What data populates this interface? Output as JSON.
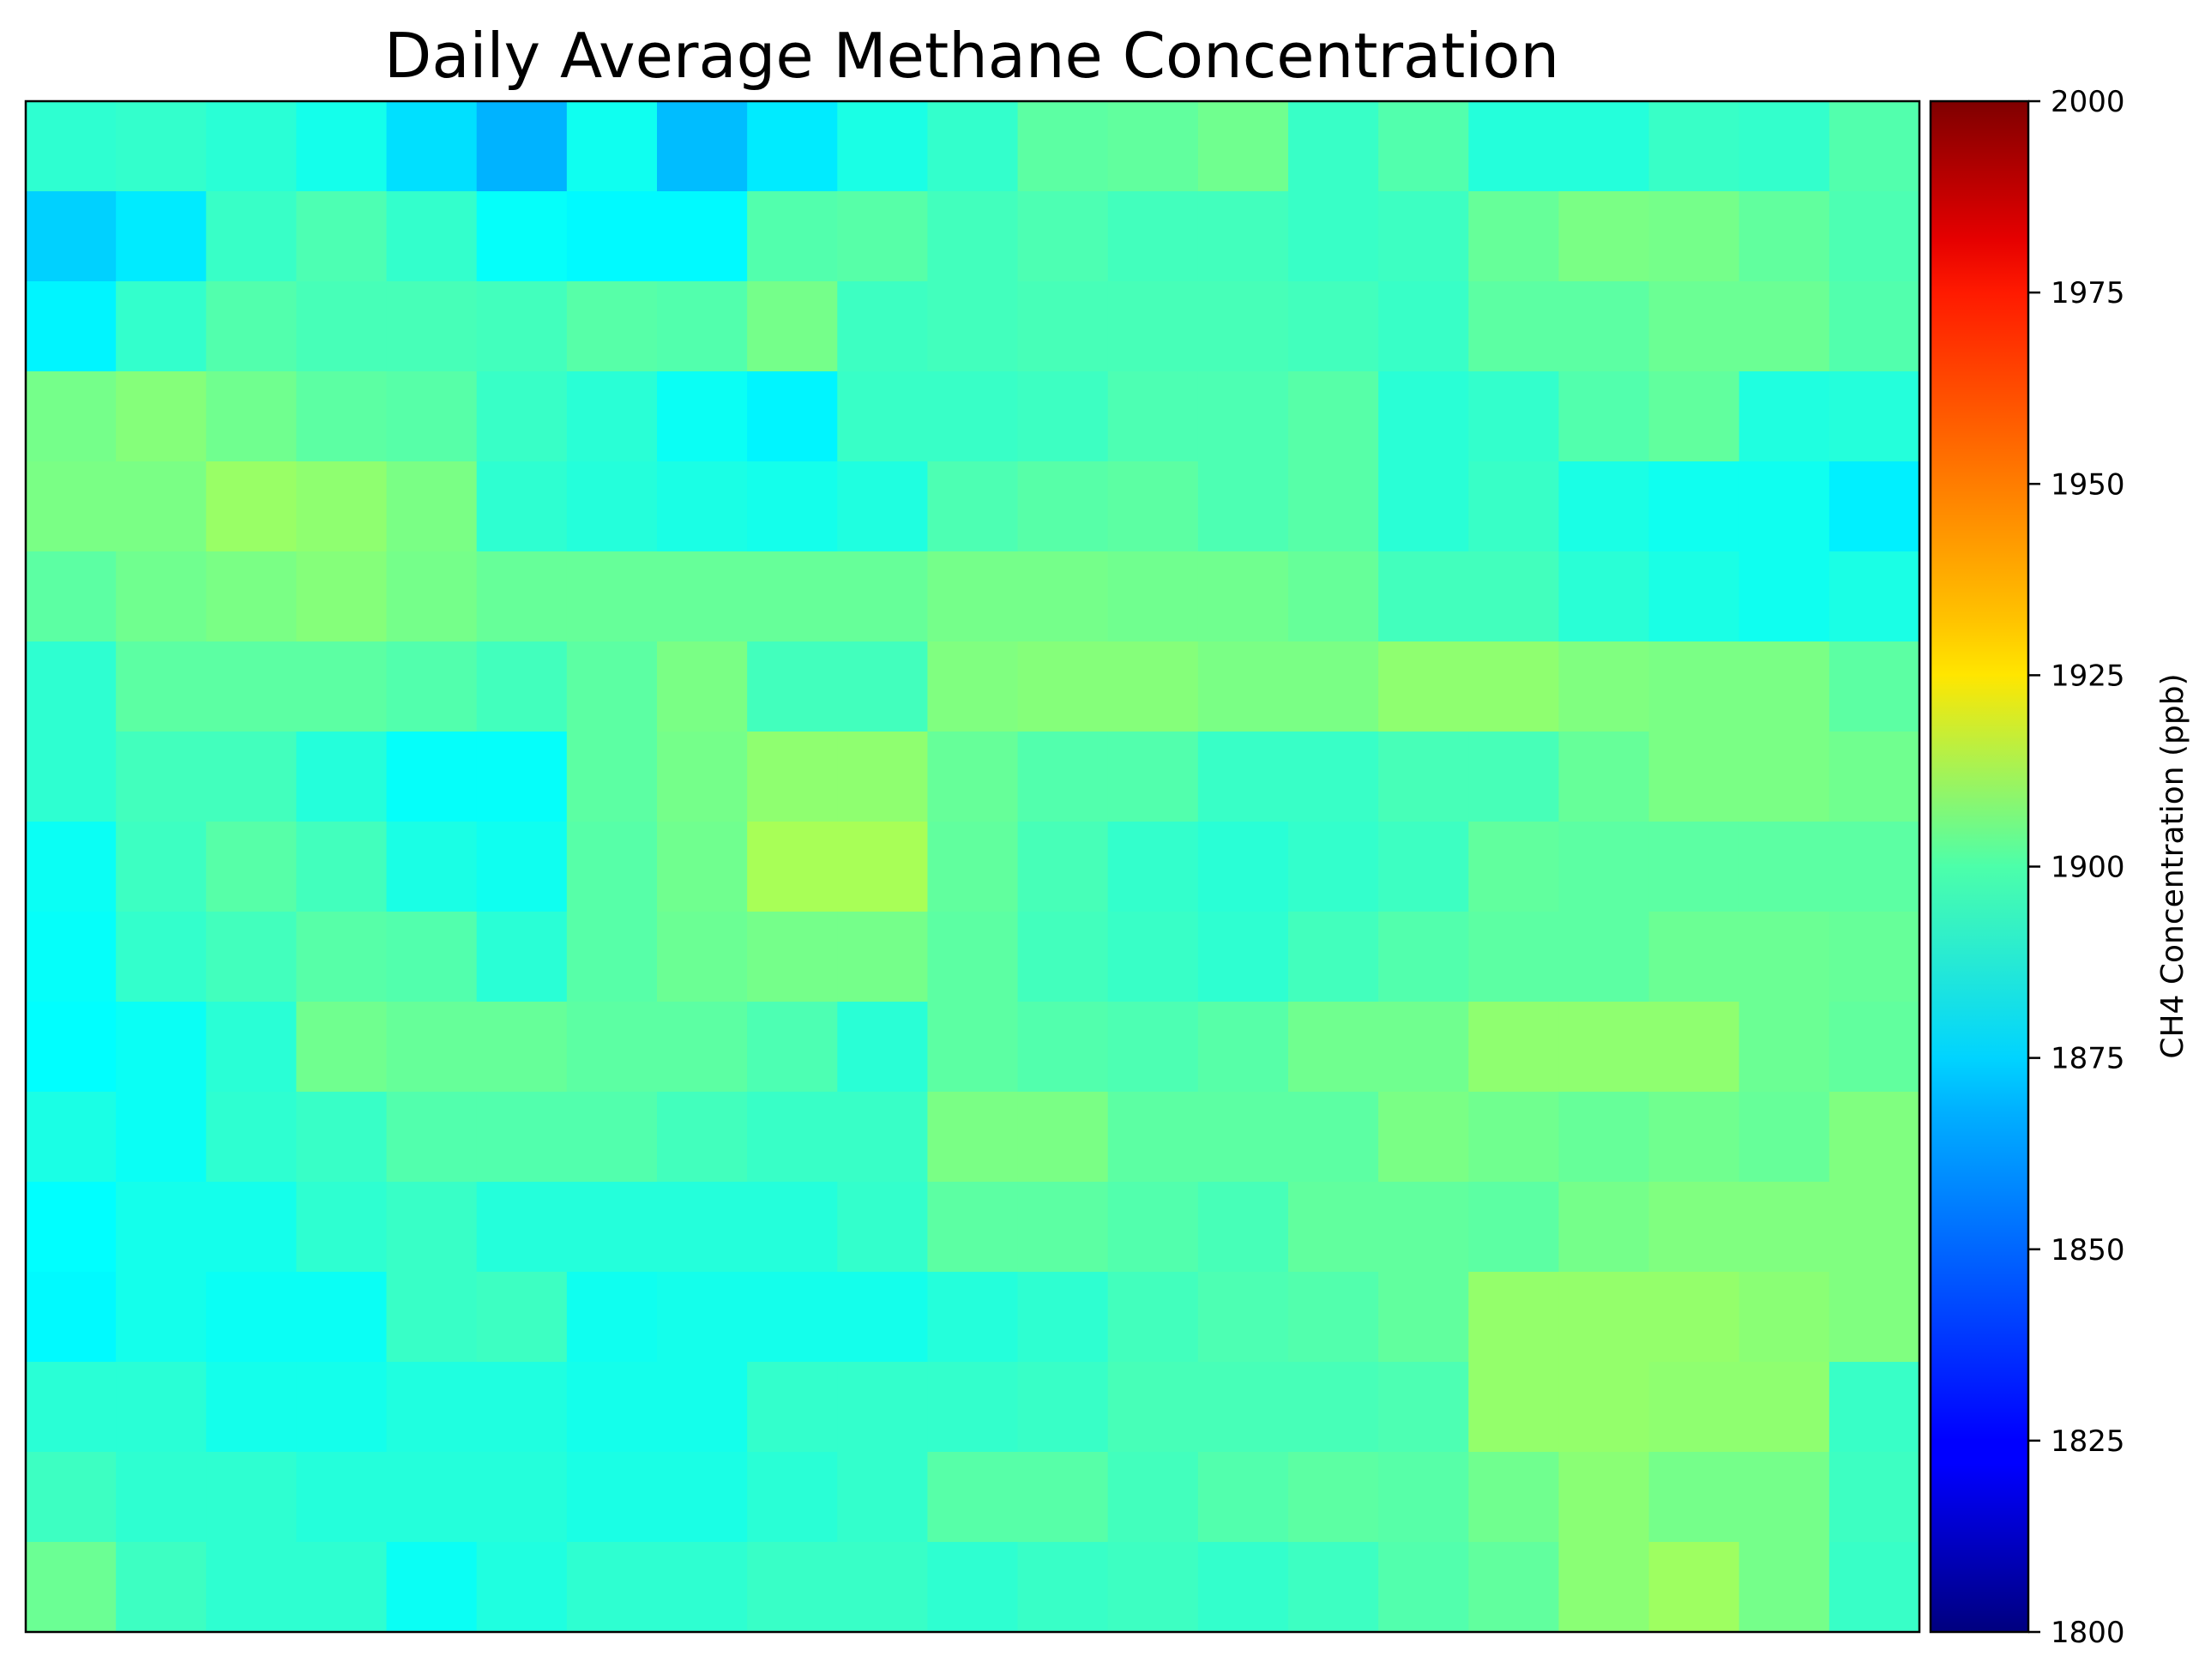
{
  "chart_data": {
    "type": "heatmap",
    "title": "Daily Average Methane Concentration",
    "xlabel": "",
    "ylabel": "",
    "axes_ticks_visible": false,
    "grid": false,
    "colormap": "jet",
    "colorbar": {
      "label": "CH4 Concentration (ppb)",
      "vmin": 1800,
      "vmax": 2000,
      "ticks": [
        1800,
        1825,
        1850,
        1875,
        1900,
        1925,
        1950,
        1975,
        2000
      ],
      "placement": "right"
    },
    "rows": 17,
    "cols": 21,
    "values": [
      [
        1884,
        1885,
        1883,
        1879,
        1869,
        1860,
        1878,
        1862,
        1871,
        1880,
        1885,
        1893,
        1894,
        1897,
        1886,
        1891,
        1882,
        1882,
        1886,
        1885,
        1891
      ],
      [
        1866,
        1871,
        1886,
        1890,
        1885,
        1876,
        1874,
        1874,
        1891,
        1892,
        1888,
        1890,
        1888,
        1888,
        1886,
        1887,
        1895,
        1899,
        1898,
        1894,
        1890
      ],
      [
        1873,
        1885,
        1891,
        1889,
        1889,
        1888,
        1892,
        1891,
        1898,
        1887,
        1888,
        1889,
        1889,
        1889,
        1888,
        1886,
        1893,
        1893,
        1896,
        1896,
        1891
      ],
      [
        1898,
        1901,
        1897,
        1893,
        1892,
        1886,
        1883,
        1877,
        1873,
        1886,
        1886,
        1887,
        1890,
        1890,
        1892,
        1883,
        1885,
        1891,
        1894,
        1881,
        1882
      ],
      [
        1899,
        1899,
        1905,
        1903,
        1899,
        1884,
        1882,
        1880,
        1879,
        1881,
        1890,
        1892,
        1893,
        1890,
        1892,
        1883,
        1886,
        1880,
        1878,
        1878,
        1872
      ],
      [
        1893,
        1897,
        1899,
        1901,
        1898,
        1895,
        1895,
        1895,
        1895,
        1895,
        1898,
        1898,
        1897,
        1897,
        1895,
        1888,
        1888,
        1883,
        1880,
        1878,
        1880
      ],
      [
        1884,
        1893,
        1893,
        1893,
        1891,
        1888,
        1893,
        1899,
        1888,
        1888,
        1900,
        1901,
        1901,
        1899,
        1899,
        1903,
        1903,
        1900,
        1899,
        1899,
        1893
      ],
      [
        1884,
        1888,
        1888,
        1882,
        1876,
        1876,
        1893,
        1898,
        1903,
        1903,
        1895,
        1891,
        1891,
        1886,
        1886,
        1889,
        1889,
        1895,
        1899,
        1899,
        1897
      ],
      [
        1877,
        1887,
        1892,
        1888,
        1880,
        1878,
        1892,
        1897,
        1908,
        1908,
        1894,
        1889,
        1885,
        1883,
        1885,
        1887,
        1894,
        1893,
        1893,
        1893,
        1893
      ],
      [
        1876,
        1885,
        1888,
        1892,
        1891,
        1883,
        1892,
        1896,
        1898,
        1898,
        1893,
        1888,
        1886,
        1884,
        1888,
        1891,
        1893,
        1893,
        1896,
        1896,
        1895
      ],
      [
        1875,
        1877,
        1883,
        1897,
        1895,
        1895,
        1893,
        1893,
        1890,
        1883,
        1893,
        1891,
        1890,
        1892,
        1897,
        1897,
        1903,
        1903,
        1903,
        1896,
        1894
      ],
      [
        1880,
        1877,
        1884,
        1886,
        1891,
        1891,
        1891,
        1888,
        1886,
        1886,
        1899,
        1899,
        1893,
        1893,
        1893,
        1899,
        1897,
        1895,
        1897,
        1895,
        1900
      ],
      [
        1875,
        1879,
        1879,
        1884,
        1886,
        1882,
        1882,
        1882,
        1882,
        1885,
        1893,
        1893,
        1891,
        1889,
        1894,
        1894,
        1893,
        1898,
        1900,
        1900,
        1900
      ],
      [
        1874,
        1879,
        1877,
        1877,
        1886,
        1887,
        1878,
        1879,
        1879,
        1879,
        1882,
        1884,
        1888,
        1890,
        1891,
        1894,
        1904,
        1904,
        1904,
        1902,
        1900
      ],
      [
        1883,
        1883,
        1879,
        1879,
        1881,
        1881,
        1879,
        1879,
        1885,
        1885,
        1885,
        1886,
        1889,
        1889,
        1889,
        1890,
        1904,
        1904,
        1903,
        1903,
        1886
      ],
      [
        1887,
        1884,
        1884,
        1882,
        1882,
        1882,
        1880,
        1880,
        1883,
        1885,
        1892,
        1892,
        1888,
        1891,
        1893,
        1892,
        1897,
        1902,
        1898,
        1898,
        1887
      ],
      [
        1896,
        1887,
        1884,
        1884,
        1877,
        1881,
        1884,
        1884,
        1886,
        1886,
        1884,
        1886,
        1887,
        1885,
        1887,
        1891,
        1894,
        1902,
        1906,
        1898,
        1886
      ]
    ]
  }
}
